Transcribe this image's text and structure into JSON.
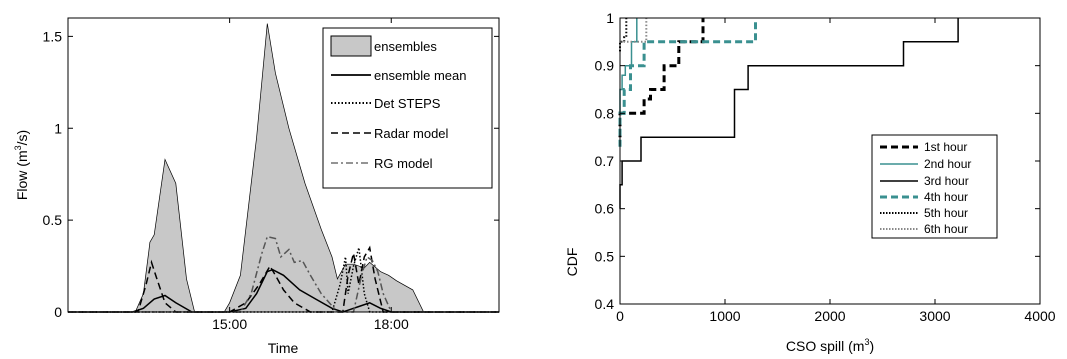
{
  "chart_data": [
    {
      "type": "area",
      "xlabel": "Time",
      "ylabel": "Flow (m",
      "ylabel_sup": "3",
      "ylabel_tail": "/s)",
      "xlim": [
        12.0,
        20.0
      ],
      "ylim": [
        0,
        1.6
      ],
      "xticks": [
        {
          "value": 15,
          "label": "15:00"
        },
        {
          "value": 18,
          "label": "18:00"
        }
      ],
      "yticks": [
        {
          "value": 0,
          "label": "0"
        },
        {
          "value": 0.5,
          "label": "0.5"
        },
        {
          "value": 1,
          "label": "1"
        },
        {
          "value": 1.5,
          "label": "1.5"
        }
      ],
      "grid": false,
      "legend_position": "top-right",
      "series": [
        {
          "name": "ensembles",
          "kind": "band",
          "color": "#c8c8c8",
          "x": [
            12.0,
            13.25,
            13.4,
            13.5,
            13.52,
            13.6,
            13.8,
            14.0,
            14.2,
            14.35,
            14.9,
            15.0,
            15.2,
            15.5,
            15.7,
            15.85,
            16.1,
            16.4,
            16.7,
            16.9,
            17.0,
            17.15,
            17.3,
            17.5,
            17.6,
            17.8,
            17.95,
            18.1,
            18.4,
            18.6,
            19.0,
            20.0
          ],
          "y": [
            0,
            0,
            0.1,
            0.33,
            0.38,
            0.42,
            0.83,
            0.7,
            0.18,
            0,
            0,
            0.05,
            0.2,
            0.95,
            1.57,
            1.3,
            1.0,
            0.7,
            0.45,
            0.3,
            0.18,
            0.26,
            0.26,
            0.24,
            0.27,
            0.22,
            0.2,
            0.17,
            0.12,
            0,
            0,
            0
          ]
        },
        {
          "name": "ensemble mean",
          "kind": "line",
          "style": "solid",
          "color": "#000000",
          "x": [
            12.0,
            13.2,
            13.4,
            13.6,
            13.8,
            14.0,
            14.3,
            15.0,
            15.3,
            15.5,
            15.7,
            15.8,
            16.0,
            16.3,
            16.6,
            16.9,
            17.1,
            17.2,
            17.4,
            17.6,
            17.8,
            18.0,
            20.0
          ],
          "y": [
            0,
            0,
            0.02,
            0.07,
            0.09,
            0.05,
            0,
            0,
            0.02,
            0.1,
            0.22,
            0.23,
            0.2,
            0.12,
            0.07,
            0.02,
            0,
            0.01,
            0.03,
            0.05,
            0.02,
            0,
            0
          ]
        },
        {
          "name": "Det STEPS",
          "kind": "line",
          "style": "dotted",
          "color": "#000000",
          "x": [
            12.0,
            16.9,
            17.05,
            17.15,
            17.2,
            17.3,
            17.4,
            17.5,
            17.6,
            20.0
          ],
          "y": [
            0,
            0,
            0.15,
            0.3,
            0.1,
            0.25,
            0.35,
            0.1,
            0,
            0
          ]
        },
        {
          "name": "Radar model",
          "kind": "line",
          "style": "dashed",
          "color": "#000000",
          "x": [
            12.0,
            13.3,
            13.45,
            13.55,
            13.65,
            13.8,
            14.0,
            15.0,
            15.3,
            15.55,
            15.75,
            15.85,
            16.0,
            16.2,
            16.5,
            17.1,
            17.2,
            17.3,
            17.4,
            17.5,
            17.6,
            17.7,
            17.85,
            20.0
          ],
          "y": [
            0,
            0,
            0.15,
            0.27,
            0.18,
            0.05,
            0,
            0,
            0.05,
            0.15,
            0.25,
            0.2,
            0.12,
            0.05,
            0,
            0,
            0.2,
            0.32,
            0.15,
            0.3,
            0.35,
            0.18,
            0,
            0
          ]
        },
        {
          "name": "RG model",
          "kind": "line",
          "style": "dashdot",
          "color": "#555555",
          "x": [
            12.0,
            15.2,
            15.4,
            15.6,
            15.7,
            15.85,
            15.95,
            16.1,
            16.2,
            16.35,
            16.5,
            16.7,
            17.0,
            17.3,
            17.45,
            17.55,
            17.65,
            17.75,
            17.85,
            18.0,
            20.0
          ],
          "y": [
            0,
            0,
            0.1,
            0.32,
            0.41,
            0.4,
            0.3,
            0.34,
            0.27,
            0.28,
            0.2,
            0.1,
            0,
            0,
            0.2,
            0.3,
            0.28,
            0.22,
            0.1,
            0,
            0
          ]
        }
      ]
    },
    {
      "type": "line",
      "xlabel": "CSO spill (m",
      "xlabel_sup": "3",
      "xlabel_tail": ")",
      "ylabel": "CDF",
      "xlim": [
        0,
        4000
      ],
      "ylim": [
        0.4,
        1.0
      ],
      "xticks": [
        {
          "value": 0,
          "label": "0"
        },
        {
          "value": 1000,
          "label": "1000"
        },
        {
          "value": 2000,
          "label": "2000"
        },
        {
          "value": 3000,
          "label": "3000"
        },
        {
          "value": 4000,
          "label": "4000"
        }
      ],
      "yticks": [
        {
          "value": 0.4,
          "label": "0.4"
        },
        {
          "value": 0.5,
          "label": "0.5"
        },
        {
          "value": 0.6,
          "label": "0.6"
        },
        {
          "value": 0.7,
          "label": "0.7"
        },
        {
          "value": 0.8,
          "label": "0.8"
        },
        {
          "value": 0.9,
          "label": "0.9"
        },
        {
          "value": 1,
          "label": "1"
        }
      ],
      "grid": false,
      "legend_position": "center-right",
      "series": [
        {
          "name": "1st hour",
          "style": "dashed",
          "color": "#000000",
          "width": 3,
          "x": [
            0,
            0,
            30,
            30,
            230,
            230,
            290,
            290,
            420,
            420,
            560,
            560,
            790,
            790
          ],
          "y": [
            0.75,
            0.8,
            0.8,
            0.8,
            0.8,
            0.83,
            0.83,
            0.85,
            0.85,
            0.9,
            0.9,
            0.95,
            0.95,
            1.0
          ]
        },
        {
          "name": "2nd hour",
          "style": "solid",
          "color": "#3a9090",
          "width": 1.5,
          "x": [
            0,
            0,
            20,
            20,
            50,
            50,
            110,
            110,
            160,
            160
          ],
          "y": [
            0.8,
            0.85,
            0.85,
            0.88,
            0.88,
            0.9,
            0.9,
            0.95,
            0.95,
            1.0
          ]
        },
        {
          "name": "3rd hour",
          "style": "solid",
          "color": "#000000",
          "width": 1.5,
          "x": [
            0,
            0,
            20,
            20,
            200,
            200,
            450,
            450,
            1090,
            1090,
            1150,
            1150,
            1220,
            1220,
            2700,
            2700,
            3220,
            3220
          ],
          "y": [
            0.6,
            0.65,
            0.65,
            0.7,
            0.7,
            0.75,
            0.75,
            0.75,
            0.75,
            0.85,
            0.85,
            0.85,
            0.85,
            0.9,
            0.9,
            0.95,
            0.95,
            1.0
          ]
        },
        {
          "name": "4th hour",
          "style": "dashed",
          "color": "#3a9090",
          "width": 3,
          "x": [
            0,
            0,
            40,
            40,
            100,
            100,
            230,
            230,
            1290,
            1290
          ],
          "y": [
            0.73,
            0.8,
            0.8,
            0.85,
            0.85,
            0.9,
            0.9,
            0.95,
            0.95,
            1.0
          ]
        },
        {
          "name": "5th hour",
          "style": "dotted",
          "color": "#000000",
          "width": 2,
          "x": [
            0,
            0,
            40,
            40,
            60,
            60
          ],
          "y": [
            0.93,
            0.95,
            0.95,
            0.96,
            0.96,
            1.0
          ]
        },
        {
          "name": "6th hour",
          "style": "dotted",
          "color": "#888888",
          "width": 2,
          "x": [
            0,
            0,
            250,
            250
          ],
          "y": [
            0.95,
            0.95,
            0.95,
            1.0
          ]
        }
      ]
    }
  ]
}
